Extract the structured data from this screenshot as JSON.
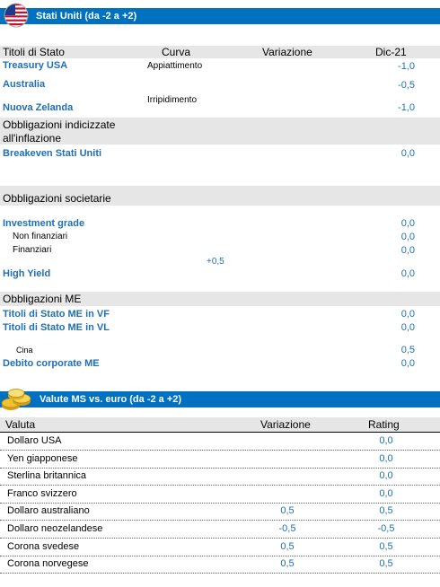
{
  "section1": {
    "title": "Stati Uniti (da -2 a +2)",
    "headers": {
      "col1": "Titoli di Stato",
      "col2": "Curva",
      "col3": "Variazione",
      "col4": "Dic-21"
    },
    "rows": {
      "treasury": {
        "label": "Treasury USA",
        "curve": "Appiattimento",
        "value": "-1,0"
      },
      "australia": {
        "label": "Australia",
        "value": "-0,5"
      },
      "nz": {
        "label": "Nuova Zelanda",
        "curve": "Irripidimento",
        "value": "-1,0"
      }
    },
    "inflation_header": {
      "line1": "Obbligazioni indicizzate",
      "line2": "all'inflazione"
    },
    "breakeven": {
      "label": "Breakeven Stati Uniti",
      "value": "0,0"
    },
    "corp_header": "Obbligazioni societarie",
    "ig": {
      "label": "Investment grade",
      "value": "0,0"
    },
    "nonfin": {
      "label": "Non finanziari",
      "value": "0,0"
    },
    "fin": {
      "label": "Finanziari",
      "value": "0,0"
    },
    "floating": "+0,5",
    "hy": {
      "label": "High Yield",
      "value": "0,0"
    },
    "em_header": "Obbligazioni ME",
    "em_vf": {
      "label": "Titoli di Stato ME in VF",
      "value": "0,0"
    },
    "em_vl": {
      "label": "Titoli di Stato ME in VL",
      "value": "0,0"
    },
    "cina": {
      "label": "Cina",
      "value": "0,5"
    },
    "em_corp": {
      "label": "Debito corporate ME",
      "value": "0,0"
    }
  },
  "section2": {
    "title": "Valute MS vs. euro (da -2 a +2)",
    "headers": {
      "col1": "Valuta",
      "col2": "Variazione",
      "col3": "Rating"
    },
    "rows": [
      {
        "name": "Dollaro USA",
        "change": "",
        "rating": "0,0"
      },
      {
        "name": "Yen giapponese",
        "change": "",
        "rating": "0,0"
      },
      {
        "name": "Sterlina britannica",
        "change": "",
        "rating": "0,0"
      },
      {
        "name": "Franco svizzero",
        "change": "",
        "rating": "0,0"
      },
      {
        "name": "Dollaro australiano",
        "change": "0,5",
        "rating": "0,5"
      },
      {
        "name": "Dollaro neozelandese",
        "change": "-0,5",
        "rating": "-0,5"
      },
      {
        "name": "Corona svedese",
        "change": "0,5",
        "rating": "0,5"
      },
      {
        "name": "Corona norvegese",
        "change": "0,5",
        "rating": "0,5"
      }
    ]
  },
  "icons": {
    "section1": "us-flag-icon",
    "section2": "coins-icon"
  },
  "colors": {
    "header": "#0070c0",
    "label_blue": "#1f6fb2",
    "gray_band": "#e6e6e6"
  }
}
